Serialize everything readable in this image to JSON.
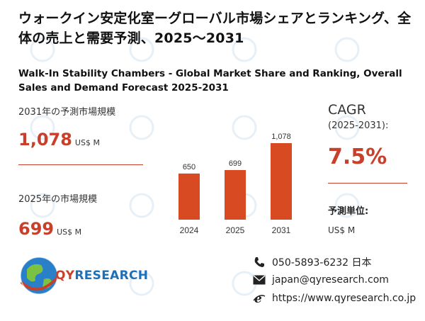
{
  "title_jp": "ウォークイン安定化室ーグローバル市場シェアとランキング、全体の売上と需要予測、2025～2031",
  "title_en": "Walk-In Stability Chambers - Global Market Share and Ranking, Overall Sales and Demand Forecast 2025-2031",
  "forecast": {
    "label": "2031年の予測市場規模",
    "value": "1,078",
    "unit": "US$ M"
  },
  "current": {
    "label": "2025年の市場規模",
    "value": "699",
    "unit": "US$ M"
  },
  "cagr": {
    "title": "CAGR",
    "period": "(2025-2031):",
    "value": "7.5%"
  },
  "unit_block": {
    "title": "予測単位:",
    "value": "US$ M"
  },
  "chart_data": {
    "type": "bar",
    "categories": [
      "2024",
      "2025",
      "2031"
    ],
    "values": [
      650,
      699,
      1078
    ],
    "value_labels": [
      "650",
      "699",
      "1,078"
    ],
    "title": "",
    "xlabel": "",
    "ylabel": "",
    "ylim": [
      0,
      1078
    ],
    "grid": false,
    "bar_color": "#d84a22"
  },
  "contact": {
    "phone": "050-5893-6232 日本",
    "email": "japan@qyresearch.com",
    "web": "https://www.qyresearch.co.jp"
  },
  "logo": {
    "prefix": "QY",
    "suffix": "RESEARCH"
  },
  "icons": {
    "phone": "phone-icon",
    "email": "email-icon",
    "web": "web-icon"
  },
  "colors": {
    "accent": "#c8402b",
    "bar": "#d84a22",
    "brand_blue": "#1d6fb8"
  }
}
